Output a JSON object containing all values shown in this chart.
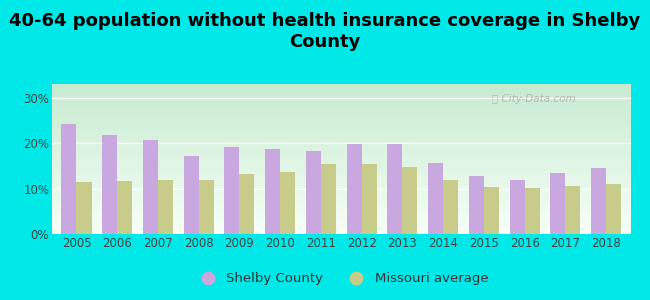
{
  "title": "40-64 population without health insurance coverage in Shelby\nCounty",
  "years": [
    2005,
    2006,
    2007,
    2008,
    2009,
    2010,
    2011,
    2012,
    2013,
    2014,
    2015,
    2016,
    2017,
    2018
  ],
  "shelby": [
    24.2,
    21.8,
    20.6,
    17.1,
    19.2,
    18.7,
    18.3,
    19.9,
    19.7,
    15.6,
    12.7,
    11.9,
    13.4,
    14.6
  ],
  "missouri": [
    11.5,
    11.6,
    11.8,
    11.9,
    13.3,
    13.7,
    15.4,
    15.4,
    14.7,
    11.9,
    10.4,
    10.2,
    10.5,
    11.0
  ],
  "shelby_color": "#c9a8e0",
  "missouri_color": "#c8cc8a",
  "bg_color": "#00e8e8",
  "ylabel_ticks": [
    "0%",
    "10%",
    "20%",
    "30%"
  ],
  "ytick_vals": [
    0,
    10,
    20,
    30
  ],
  "ylim": [
    0,
    33
  ],
  "legend_shelby": "Shelby County",
  "legend_missouri": "Missouri average",
  "bar_width": 0.37,
  "title_fontsize": 13,
  "tick_fontsize": 8.5,
  "legend_fontsize": 9.5
}
